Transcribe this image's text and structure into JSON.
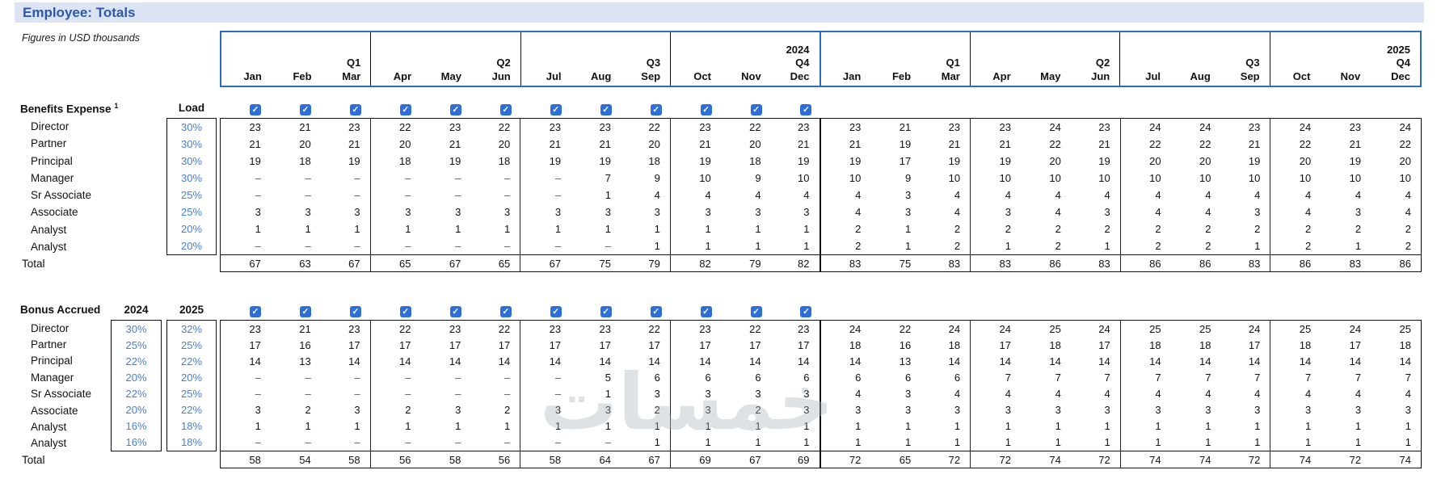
{
  "title": "Employee: Totals",
  "subtitle": "Figures in USD thousands",
  "watermark": "خمسات",
  "colors": {
    "title_band": "#dce4f4",
    "title_text": "#2b58a8",
    "header_border": "#2a6cc0",
    "rate_text": "#4a7fd0",
    "checkbox": "#2e6ed9",
    "grid_line": "#111111"
  },
  "header": {
    "years": [
      {
        "label": "2024",
        "quarters": [
          {
            "label": "Q1",
            "months": [
              "Jan",
              "Feb",
              "Mar"
            ]
          },
          {
            "label": "Q2",
            "months": [
              "Apr",
              "May",
              "Jun"
            ]
          },
          {
            "label": "Q3",
            "months": [
              "Jul",
              "Aug",
              "Sep"
            ]
          },
          {
            "label": "Q4",
            "months": [
              "Oct",
              "Nov",
              "Dec"
            ]
          }
        ]
      },
      {
        "label": "2025",
        "quarters": [
          {
            "label": "Q1",
            "months": [
              "Jan",
              "Feb",
              "Mar"
            ]
          },
          {
            "label": "Q2",
            "months": [
              "Apr",
              "May",
              "Jun"
            ]
          },
          {
            "label": "Q3",
            "months": [
              "Jul",
              "Aug",
              "Sep"
            ]
          },
          {
            "label": "Q4",
            "months": [
              "Oct",
              "Nov",
              "Dec"
            ]
          }
        ]
      }
    ]
  },
  "sections": [
    {
      "name": "Benefits Expense",
      "footnote_mark": "1",
      "rate_headers": [
        "Load"
      ],
      "month_toggles": [
        true,
        true,
        true,
        true,
        true,
        true,
        true,
        true,
        true,
        true,
        true,
        true
      ],
      "rows": [
        {
          "label": "Director",
          "rates": [
            "30%"
          ],
          "values": [
            "23",
            "21",
            "23",
            "22",
            "23",
            "22",
            "23",
            "23",
            "22",
            "23",
            "22",
            "23",
            "23",
            "21",
            "23",
            "23",
            "24",
            "23",
            "24",
            "24",
            "23",
            "24",
            "23",
            "24"
          ]
        },
        {
          "label": "Partner",
          "rates": [
            "30%"
          ],
          "values": [
            "21",
            "20",
            "21",
            "20",
            "21",
            "20",
            "21",
            "21",
            "20",
            "21",
            "20",
            "21",
            "21",
            "19",
            "21",
            "21",
            "22",
            "21",
            "22",
            "22",
            "21",
            "22",
            "21",
            "22"
          ]
        },
        {
          "label": "Principal",
          "rates": [
            "30%"
          ],
          "values": [
            "19",
            "18",
            "19",
            "18",
            "19",
            "18",
            "19",
            "19",
            "18",
            "19",
            "18",
            "19",
            "19",
            "17",
            "19",
            "19",
            "20",
            "19",
            "20",
            "20",
            "19",
            "20",
            "19",
            "20"
          ]
        },
        {
          "label": "Manager",
          "rates": [
            "30%"
          ],
          "values": [
            "–",
            "–",
            "–",
            "–",
            "–",
            "–",
            "–",
            "7",
            "9",
            "10",
            "9",
            "10",
            "10",
            "9",
            "10",
            "10",
            "10",
            "10",
            "10",
            "10",
            "10",
            "10",
            "10",
            "10"
          ]
        },
        {
          "label": "Sr Associate",
          "rates": [
            "25%"
          ],
          "values": [
            "–",
            "–",
            "–",
            "–",
            "–",
            "–",
            "–",
            "1",
            "4",
            "4",
            "4",
            "4",
            "4",
            "3",
            "4",
            "4",
            "4",
            "4",
            "4",
            "4",
            "4",
            "4",
            "4",
            "4"
          ]
        },
        {
          "label": "Associate",
          "rates": [
            "25%"
          ],
          "values": [
            "3",
            "3",
            "3",
            "3",
            "3",
            "3",
            "3",
            "3",
            "3",
            "3",
            "3",
            "3",
            "4",
            "3",
            "4",
            "3",
            "4",
            "3",
            "4",
            "4",
            "3",
            "4",
            "3",
            "4"
          ]
        },
        {
          "label": "Analyst",
          "rates": [
            "20%"
          ],
          "values": [
            "1",
            "1",
            "1",
            "1",
            "1",
            "1",
            "1",
            "1",
            "1",
            "1",
            "1",
            "1",
            "2",
            "1",
            "2",
            "2",
            "2",
            "2",
            "2",
            "2",
            "2",
            "2",
            "2",
            "2"
          ]
        },
        {
          "label": "Analyst",
          "rates": [
            "20%"
          ],
          "values": [
            "–",
            "–",
            "–",
            "–",
            "–",
            "–",
            "–",
            "–",
            "1",
            "1",
            "1",
            "1",
            "2",
            "1",
            "2",
            "1",
            "2",
            "1",
            "2",
            "2",
            "1",
            "2",
            "1",
            "2"
          ]
        }
      ],
      "total": {
        "label": "Total",
        "values": [
          "67",
          "63",
          "67",
          "65",
          "67",
          "65",
          "67",
          "75",
          "79",
          "82",
          "79",
          "82",
          "83",
          "75",
          "83",
          "83",
          "86",
          "83",
          "86",
          "86",
          "83",
          "86",
          "83",
          "86"
        ]
      }
    },
    {
      "name": "Bonus Accrued",
      "rate_headers": [
        "2024",
        "2025"
      ],
      "month_toggles": [
        true,
        true,
        true,
        true,
        true,
        true,
        true,
        true,
        true,
        true,
        true,
        true
      ],
      "rows": [
        {
          "label": "Director",
          "rates": [
            "30%",
            "32%"
          ],
          "values": [
            "23",
            "21",
            "23",
            "22",
            "23",
            "22",
            "23",
            "23",
            "22",
            "23",
            "22",
            "23",
            "24",
            "22",
            "24",
            "24",
            "25",
            "24",
            "25",
            "25",
            "24",
            "25",
            "24",
            "25"
          ]
        },
        {
          "label": "Partner",
          "rates": [
            "25%",
            "25%"
          ],
          "values": [
            "17",
            "16",
            "17",
            "17",
            "17",
            "17",
            "17",
            "17",
            "17",
            "17",
            "17",
            "17",
            "18",
            "16",
            "18",
            "17",
            "18",
            "17",
            "18",
            "18",
            "17",
            "18",
            "17",
            "18"
          ]
        },
        {
          "label": "Principal",
          "rates": [
            "22%",
            "22%"
          ],
          "values": [
            "14",
            "13",
            "14",
            "14",
            "14",
            "14",
            "14",
            "14",
            "14",
            "14",
            "14",
            "14",
            "14",
            "13",
            "14",
            "14",
            "14",
            "14",
            "14",
            "14",
            "14",
            "14",
            "14",
            "14"
          ]
        },
        {
          "label": "Manager",
          "rates": [
            "20%",
            "20%"
          ],
          "values": [
            "–",
            "–",
            "–",
            "–",
            "–",
            "–",
            "–",
            "5",
            "6",
            "6",
            "6",
            "6",
            "6",
            "6",
            "6",
            "7",
            "7",
            "7",
            "7",
            "7",
            "7",
            "7",
            "7",
            "7"
          ]
        },
        {
          "label": "Sr Associate",
          "rates": [
            "22%",
            "25%"
          ],
          "values": [
            "–",
            "–",
            "–",
            "–",
            "–",
            "–",
            "–",
            "1",
            "3",
            "3",
            "3",
            "3",
            "4",
            "3",
            "4",
            "4",
            "4",
            "4",
            "4",
            "4",
            "4",
            "4",
            "4",
            "4"
          ]
        },
        {
          "label": "Associate",
          "rates": [
            "20%",
            "22%"
          ],
          "values": [
            "3",
            "2",
            "3",
            "2",
            "3",
            "2",
            "3",
            "3",
            "2",
            "3",
            "2",
            "3",
            "3",
            "3",
            "3",
            "3",
            "3",
            "3",
            "3",
            "3",
            "3",
            "3",
            "3",
            "3"
          ]
        },
        {
          "label": "Analyst",
          "rates": [
            "16%",
            "18%"
          ],
          "values": [
            "1",
            "1",
            "1",
            "1",
            "1",
            "1",
            "1",
            "1",
            "1",
            "1",
            "1",
            "1",
            "1",
            "1",
            "1",
            "1",
            "1",
            "1",
            "1",
            "1",
            "1",
            "1",
            "1",
            "1"
          ]
        },
        {
          "label": "Analyst",
          "rates": [
            "16%",
            "18%"
          ],
          "values": [
            "–",
            "–",
            "–",
            "–",
            "–",
            "–",
            "–",
            "–",
            "1",
            "1",
            "1",
            "1",
            "1",
            "1",
            "1",
            "1",
            "1",
            "1",
            "1",
            "1",
            "1",
            "1",
            "1",
            "1"
          ]
        }
      ],
      "total": {
        "label": "Total",
        "values": [
          "58",
          "54",
          "58",
          "56",
          "58",
          "56",
          "58",
          "64",
          "67",
          "69",
          "67",
          "69",
          "72",
          "65",
          "72",
          "72",
          "74",
          "72",
          "74",
          "74",
          "72",
          "74",
          "72",
          "74"
        ]
      }
    }
  ]
}
